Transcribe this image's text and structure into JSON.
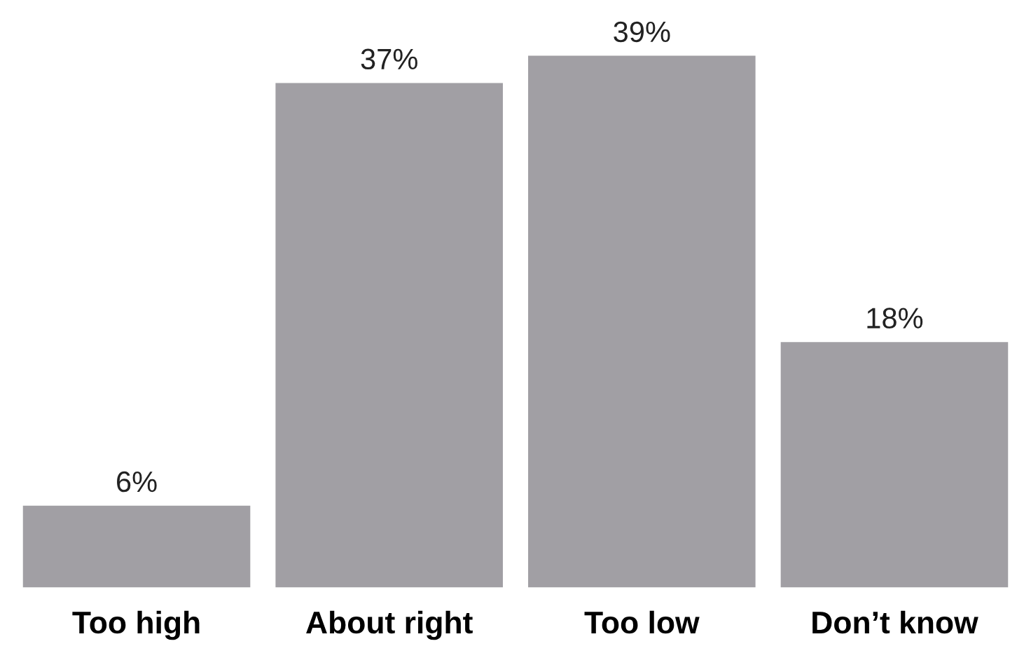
{
  "chart_data": {
    "type": "bar",
    "categories": [
      "Too high",
      "About right",
      "Too low",
      "Don’t know"
    ],
    "values": [
      6,
      37,
      39,
      18
    ],
    "value_labels": [
      "6%",
      "37%",
      "39%",
      "18%"
    ],
    "color": "#a19fa4",
    "grid": false,
    "legend": false
  }
}
